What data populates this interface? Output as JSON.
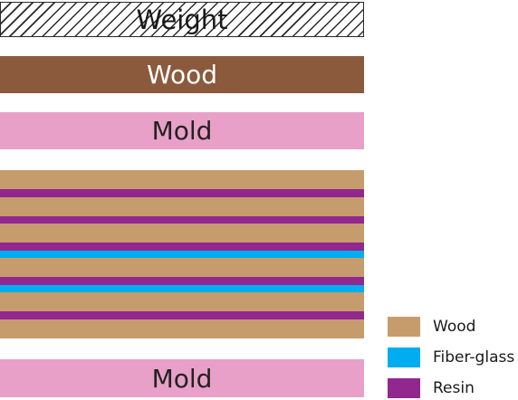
{
  "blocks": {
    "weight": "Weight",
    "wood": "Wood",
    "mold_top": "Mold",
    "mold_bottom": "Mold"
  },
  "colors": {
    "wood": "#c69c6d",
    "fiberglass": "#00aeef",
    "resin": "#92278f",
    "wood_block": "#8b5a3c",
    "mold": "#e8a0c8"
  },
  "laminate_layers": [
    "wood",
    "resin",
    "wood",
    "resin",
    "wood",
    "resin",
    "fiberglass",
    "wood",
    "resin",
    "fiberglass",
    "wood",
    "resin",
    "wood"
  ],
  "legend": [
    {
      "label": "Wood",
      "color": "#c69c6d"
    },
    {
      "label": "Fiber-glass",
      "color": "#00aeef"
    },
    {
      "label": "Resin",
      "color": "#92278f"
    }
  ]
}
